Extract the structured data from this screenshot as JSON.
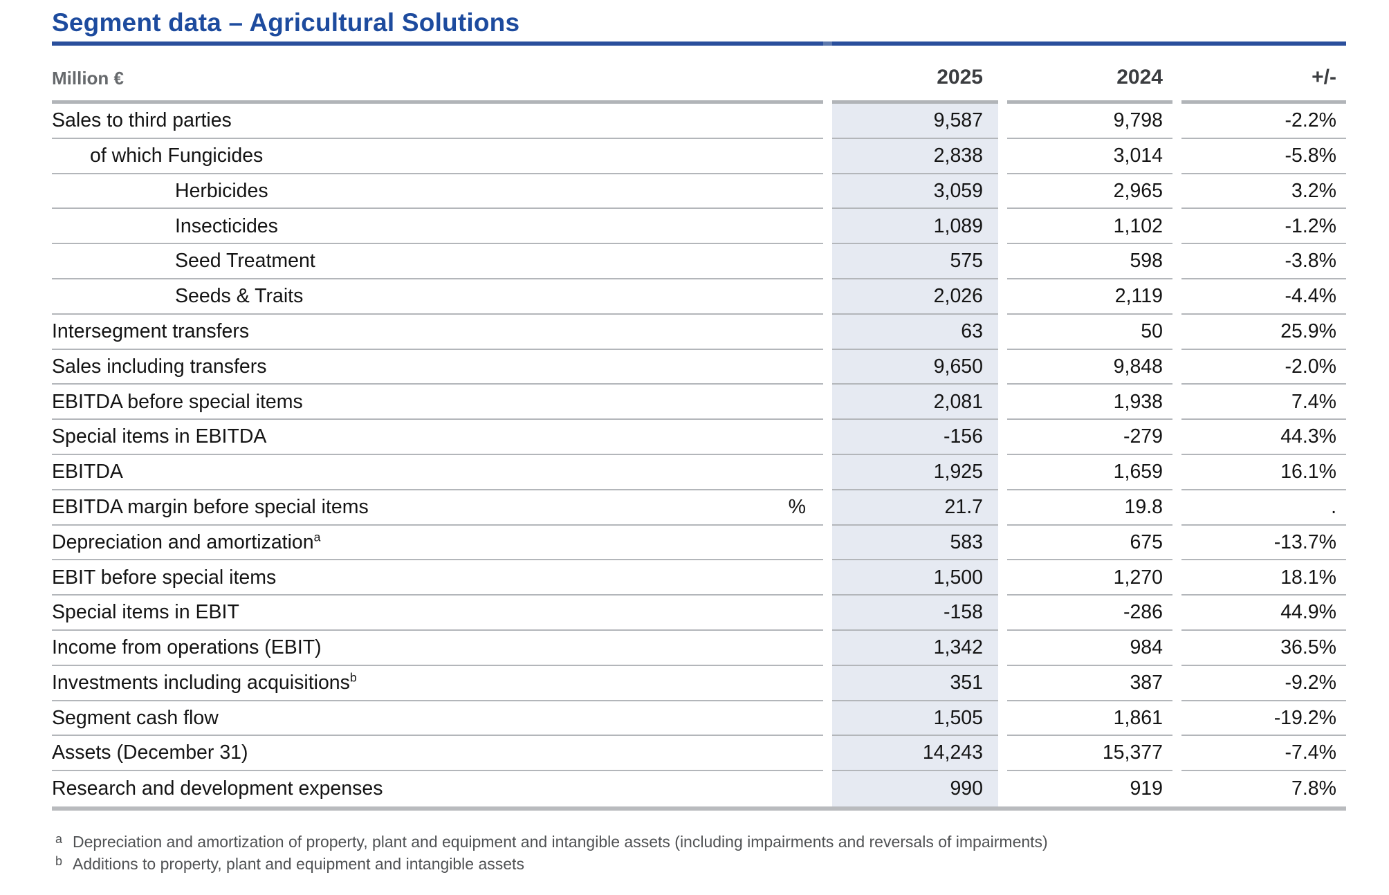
{
  "title": "Segment data – Agricultural Solutions",
  "colors": {
    "accent_blue": "#1d4b9e",
    "rule_blue": "#2a4f9c",
    "highlight_column": "#e6eaf2",
    "rule_gray": "#b3b6ba"
  },
  "table": {
    "unit_label": "Million €",
    "columns": [
      "2025",
      "2024",
      "+/-"
    ],
    "rows": [
      {
        "label": "Sales to third parties",
        "indent": 0,
        "v2025": "9,587",
        "v2024": "9,798",
        "change": "-2.2%"
      },
      {
        "label": "of which Fungicides",
        "indent": 1,
        "v2025": "2,838",
        "v2024": "3,014",
        "change": "-5.8%"
      },
      {
        "label": "Herbicides",
        "indent": 2,
        "v2025": "3,059",
        "v2024": "2,965",
        "change": "3.2%"
      },
      {
        "label": "Insecticides",
        "indent": 2,
        "v2025": "1,089",
        "v2024": "1,102",
        "change": "-1.2%"
      },
      {
        "label": "Seed Treatment",
        "indent": 2,
        "v2025": "575",
        "v2024": "598",
        "change": "-3.8%"
      },
      {
        "label": "Seeds & Traits",
        "indent": 2,
        "v2025": "2,026",
        "v2024": "2,119",
        "change": "-4.4%"
      },
      {
        "label": "Intersegment transfers",
        "indent": 0,
        "v2025": "63",
        "v2024": "50",
        "change": "25.9%"
      },
      {
        "label": "Sales including transfers",
        "indent": 0,
        "v2025": "9,650",
        "v2024": "9,848",
        "change": "-2.0%"
      },
      {
        "label": "EBITDA before special items",
        "indent": 0,
        "v2025": "2,081",
        "v2024": "1,938",
        "change": "7.4%"
      },
      {
        "label": "Special items in EBITDA",
        "indent": 0,
        "v2025": "-156",
        "v2024": "-279",
        "change": "44.3%"
      },
      {
        "label": "EBITDA",
        "indent": 0,
        "v2025": "1,925",
        "v2024": "1,659",
        "change": "16.1%"
      },
      {
        "label": "EBITDA margin before special items",
        "indent": 0,
        "unit": "%",
        "v2025": "21.7",
        "v2024": "19.8",
        "change": "."
      },
      {
        "label": "Depreciation and amortization",
        "sup": "a",
        "indent": 0,
        "v2025": "583",
        "v2024": "675",
        "change": "-13.7%"
      },
      {
        "label": "EBIT before special items",
        "indent": 0,
        "v2025": "1,500",
        "v2024": "1,270",
        "change": "18.1%"
      },
      {
        "label": "Special items in EBIT",
        "indent": 0,
        "v2025": "-158",
        "v2024": "-286",
        "change": "44.9%"
      },
      {
        "label": "Income from operations (EBIT)",
        "indent": 0,
        "v2025": "1,342",
        "v2024": "984",
        "change": "36.5%"
      },
      {
        "label": "Investments including acquisitions",
        "sup": "b",
        "indent": 0,
        "v2025": "351",
        "v2024": "387",
        "change": "-9.2%"
      },
      {
        "label": "Segment cash flow",
        "indent": 0,
        "v2025": "1,505",
        "v2024": "1,861",
        "change": "-19.2%"
      },
      {
        "label": "Assets (December 31)",
        "indent": 0,
        "v2025": "14,243",
        "v2024": "15,377",
        "change": "-7.4%"
      },
      {
        "label": "Research and development expenses",
        "indent": 0,
        "v2025": "990",
        "v2024": "919",
        "change": "7.8%"
      }
    ]
  },
  "footnotes": [
    {
      "marker": "a",
      "text": "Depreciation and amortization of property, plant and equipment and intangible assets (including impairments and reversals of impairments)"
    },
    {
      "marker": "b",
      "text": "Additions to property, plant and equipment and intangible assets"
    }
  ]
}
